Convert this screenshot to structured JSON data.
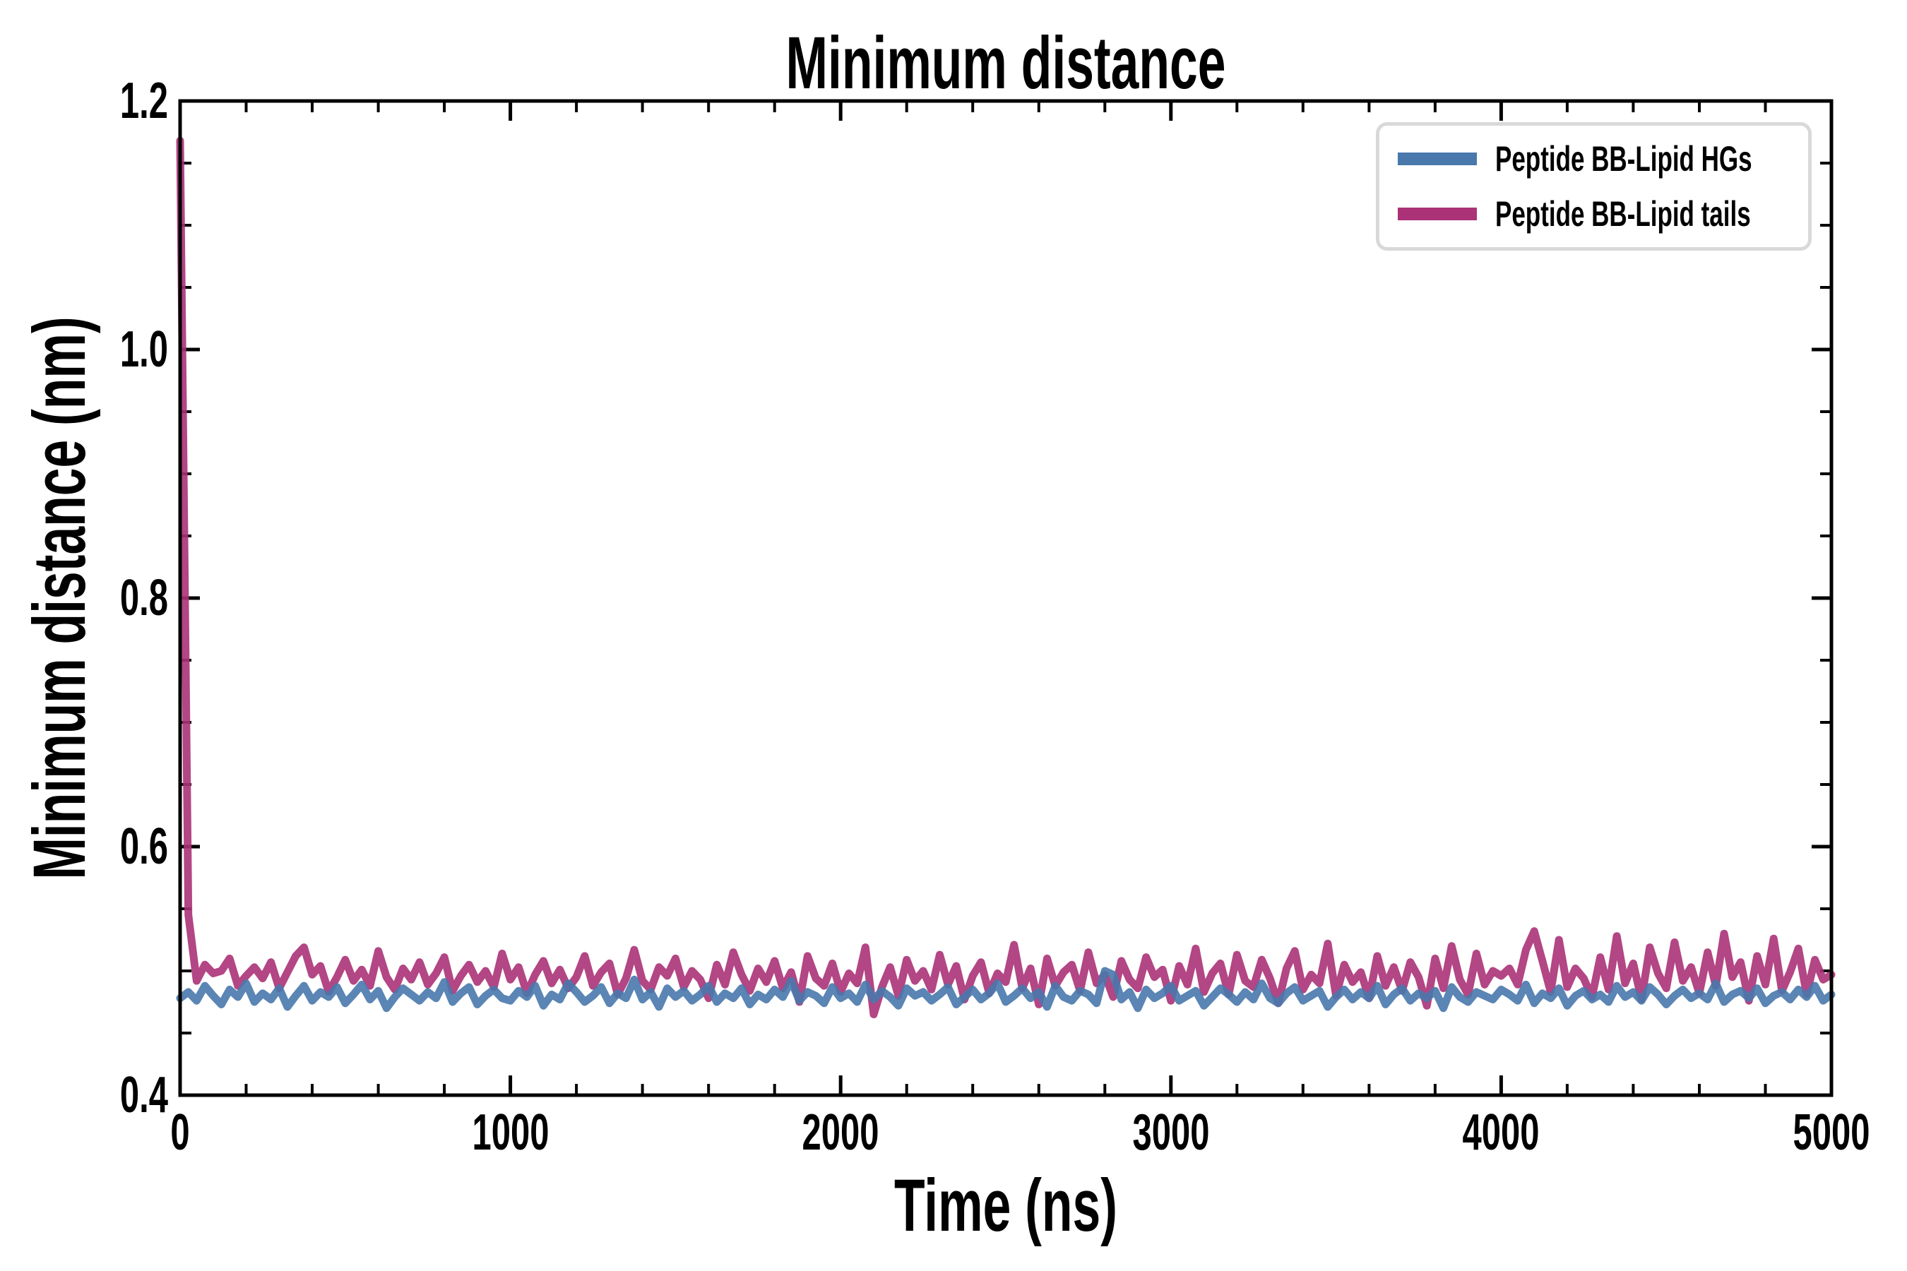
{
  "chart_data": {
    "type": "line",
    "title": "Minimum distance",
    "xlabel": "Time (ns)",
    "ylabel": "Minimum distance (nm)",
    "xlim": [
      0,
      5000
    ],
    "ylim": [
      0.4,
      1.2
    ],
    "x_major_ticks": [
      0,
      1000,
      2000,
      3000,
      4000,
      5000
    ],
    "x_tick_labels": [
      "0",
      "1000",
      "2000",
      "3000",
      "4000",
      "5000"
    ],
    "y_major_ticks": [
      0.4,
      0.6,
      0.8,
      1.0,
      1.2
    ],
    "y_tick_labels": [
      "0.4",
      "0.6",
      "0.8",
      "1.0",
      "1.2"
    ],
    "x_minor_step": 200,
    "y_minor_step": 0.05,
    "grid": false,
    "legend_position": "upper right",
    "axis_color": "#000000",
    "background_color": "#ffffff",
    "series": [
      {
        "id": "peptide-bb-lipid-hgs",
        "name": "Peptide BB-Lipid HGs",
        "color": "#4878ac",
        "opacity": 0.9,
        "draw_order": 2,
        "x_start": 0,
        "x_step": 25,
        "values": [
          0.478,
          0.483,
          0.476,
          0.488,
          0.48,
          0.473,
          0.485,
          0.479,
          0.49,
          0.475,
          0.482,
          0.477,
          0.486,
          0.471,
          0.48,
          0.488,
          0.476,
          0.483,
          0.479,
          0.487,
          0.474,
          0.481,
          0.489,
          0.477,
          0.484,
          0.47,
          0.479,
          0.486,
          0.481,
          0.476,
          0.483,
          0.478,
          0.491,
          0.475,
          0.482,
          0.487,
          0.473,
          0.48,
          0.485,
          0.478,
          0.476,
          0.484,
          0.479,
          0.488,
          0.472,
          0.481,
          0.477,
          0.49,
          0.483,
          0.475,
          0.48,
          0.487,
          0.474,
          0.482,
          0.478,
          0.493,
          0.477,
          0.483,
          0.471,
          0.486,
          0.479,
          0.484,
          0.476,
          0.481,
          0.488,
          0.475,
          0.482,
          0.478,
          0.486,
          0.473,
          0.481,
          0.477,
          0.485,
          0.479,
          0.492,
          0.476,
          0.483,
          0.48,
          0.474,
          0.487,
          0.478,
          0.482,
          0.475,
          0.489,
          0.477,
          0.484,
          0.479,
          0.472,
          0.486,
          0.48,
          0.483,
          0.476,
          0.481,
          0.487,
          0.473,
          0.479,
          0.485,
          0.477,
          0.482,
          0.49,
          0.475,
          0.48,
          0.486,
          0.478,
          0.483,
          0.471,
          0.488,
          0.479,
          0.476,
          0.484,
          0.481,
          0.474,
          0.5,
          0.497,
          0.477,
          0.483,
          0.47,
          0.485,
          0.478,
          0.482,
          0.488,
          0.476,
          0.48,
          0.484,
          0.472,
          0.479,
          0.486,
          0.481,
          0.475,
          0.483,
          0.477,
          0.49,
          0.478,
          0.474,
          0.482,
          0.487,
          0.476,
          0.48,
          0.484,
          0.471,
          0.479,
          0.485,
          0.477,
          0.483,
          0.478,
          0.488,
          0.473,
          0.481,
          0.486,
          0.476,
          0.482,
          0.478,
          0.484,
          0.47,
          0.487,
          0.479,
          0.475,
          0.483,
          0.48,
          0.477,
          0.485,
          0.481,
          0.476,
          0.489,
          0.474,
          0.482,
          0.478,
          0.486,
          0.472,
          0.48,
          0.484,
          0.477,
          0.481,
          0.475,
          0.488,
          0.479,
          0.483,
          0.476,
          0.487,
          0.481,
          0.473,
          0.48,
          0.485,
          0.478,
          0.482,
          0.477,
          0.49,
          0.475,
          0.481,
          0.484,
          0.478,
          0.486,
          0.474,
          0.48,
          0.483,
          0.477,
          0.485,
          0.479,
          0.488,
          0.476,
          0.481
        ]
      },
      {
        "id": "peptide-bb-lipid-tails",
        "name": "Peptide BB-Lipid tails",
        "color": "#ab3277",
        "opacity": 0.9,
        "draw_order": 1,
        "x_start": 0,
        "x_step": 25,
        "values": [
          1.168,
          0.545,
          0.492,
          0.505,
          0.498,
          0.5,
          0.51,
          0.488,
          0.496,
          0.503,
          0.494,
          0.507,
          0.486,
          0.499,
          0.512,
          0.519,
          0.497,
          0.504,
          0.483,
          0.495,
          0.509,
          0.492,
          0.501,
          0.488,
          0.516,
          0.495,
          0.485,
          0.502,
          0.493,
          0.507,
          0.489,
          0.498,
          0.511,
          0.484,
          0.496,
          0.505,
          0.491,
          0.5,
          0.487,
          0.514,
          0.493,
          0.503,
          0.482,
          0.497,
          0.508,
          0.49,
          0.501,
          0.486,
          0.495,
          0.512,
          0.488,
          0.499,
          0.506,
          0.481,
          0.494,
          0.517,
          0.492,
          0.485,
          0.503,
          0.496,
          0.51,
          0.487,
          0.5,
          0.493,
          0.478,
          0.505,
          0.489,
          0.515,
          0.497,
          0.484,
          0.502,
          0.491,
          0.508,
          0.486,
          0.499,
          0.475,
          0.512,
          0.494,
          0.488,
          0.506,
          0.483,
          0.498,
          0.49,
          0.519,
          0.465,
          0.487,
          0.503,
          0.48,
          0.509,
          0.492,
          0.5,
          0.485,
          0.513,
          0.489,
          0.504,
          0.477,
          0.496,
          0.507,
          0.482,
          0.498,
          0.491,
          0.521,
          0.486,
          0.502,
          0.473,
          0.51,
          0.488,
          0.499,
          0.505,
          0.484,
          0.515,
          0.49,
          0.497,
          0.479,
          0.508,
          0.493,
          0.486,
          0.511,
          0.495,
          0.501,
          0.476,
          0.504,
          0.489,
          0.518,
          0.483,
          0.498,
          0.506,
          0.481,
          0.513,
          0.492,
          0.487,
          0.509,
          0.494,
          0.474,
          0.502,
          0.516,
          0.485,
          0.497,
          0.49,
          0.522,
          0.48,
          0.505,
          0.491,
          0.499,
          0.478,
          0.512,
          0.488,
          0.503,
          0.484,
          0.507,
          0.495,
          0.472,
          0.51,
          0.486,
          0.52,
          0.493,
          0.481,
          0.514,
          0.489,
          0.5,
          0.496,
          0.502,
          0.489,
          0.517,
          0.532,
          0.508,
          0.483,
          0.525,
          0.487,
          0.502,
          0.494,
          0.479,
          0.511,
          0.485,
          0.528,
          0.49,
          0.506,
          0.477,
          0.519,
          0.498,
          0.486,
          0.523,
          0.492,
          0.503,
          0.482,
          0.515,
          0.488,
          0.53,
          0.495,
          0.507,
          0.476,
          0.512,
          0.489,
          0.526,
          0.484,
          0.499,
          0.518,
          0.481,
          0.509,
          0.493,
          0.497
        ]
      }
    ]
  }
}
